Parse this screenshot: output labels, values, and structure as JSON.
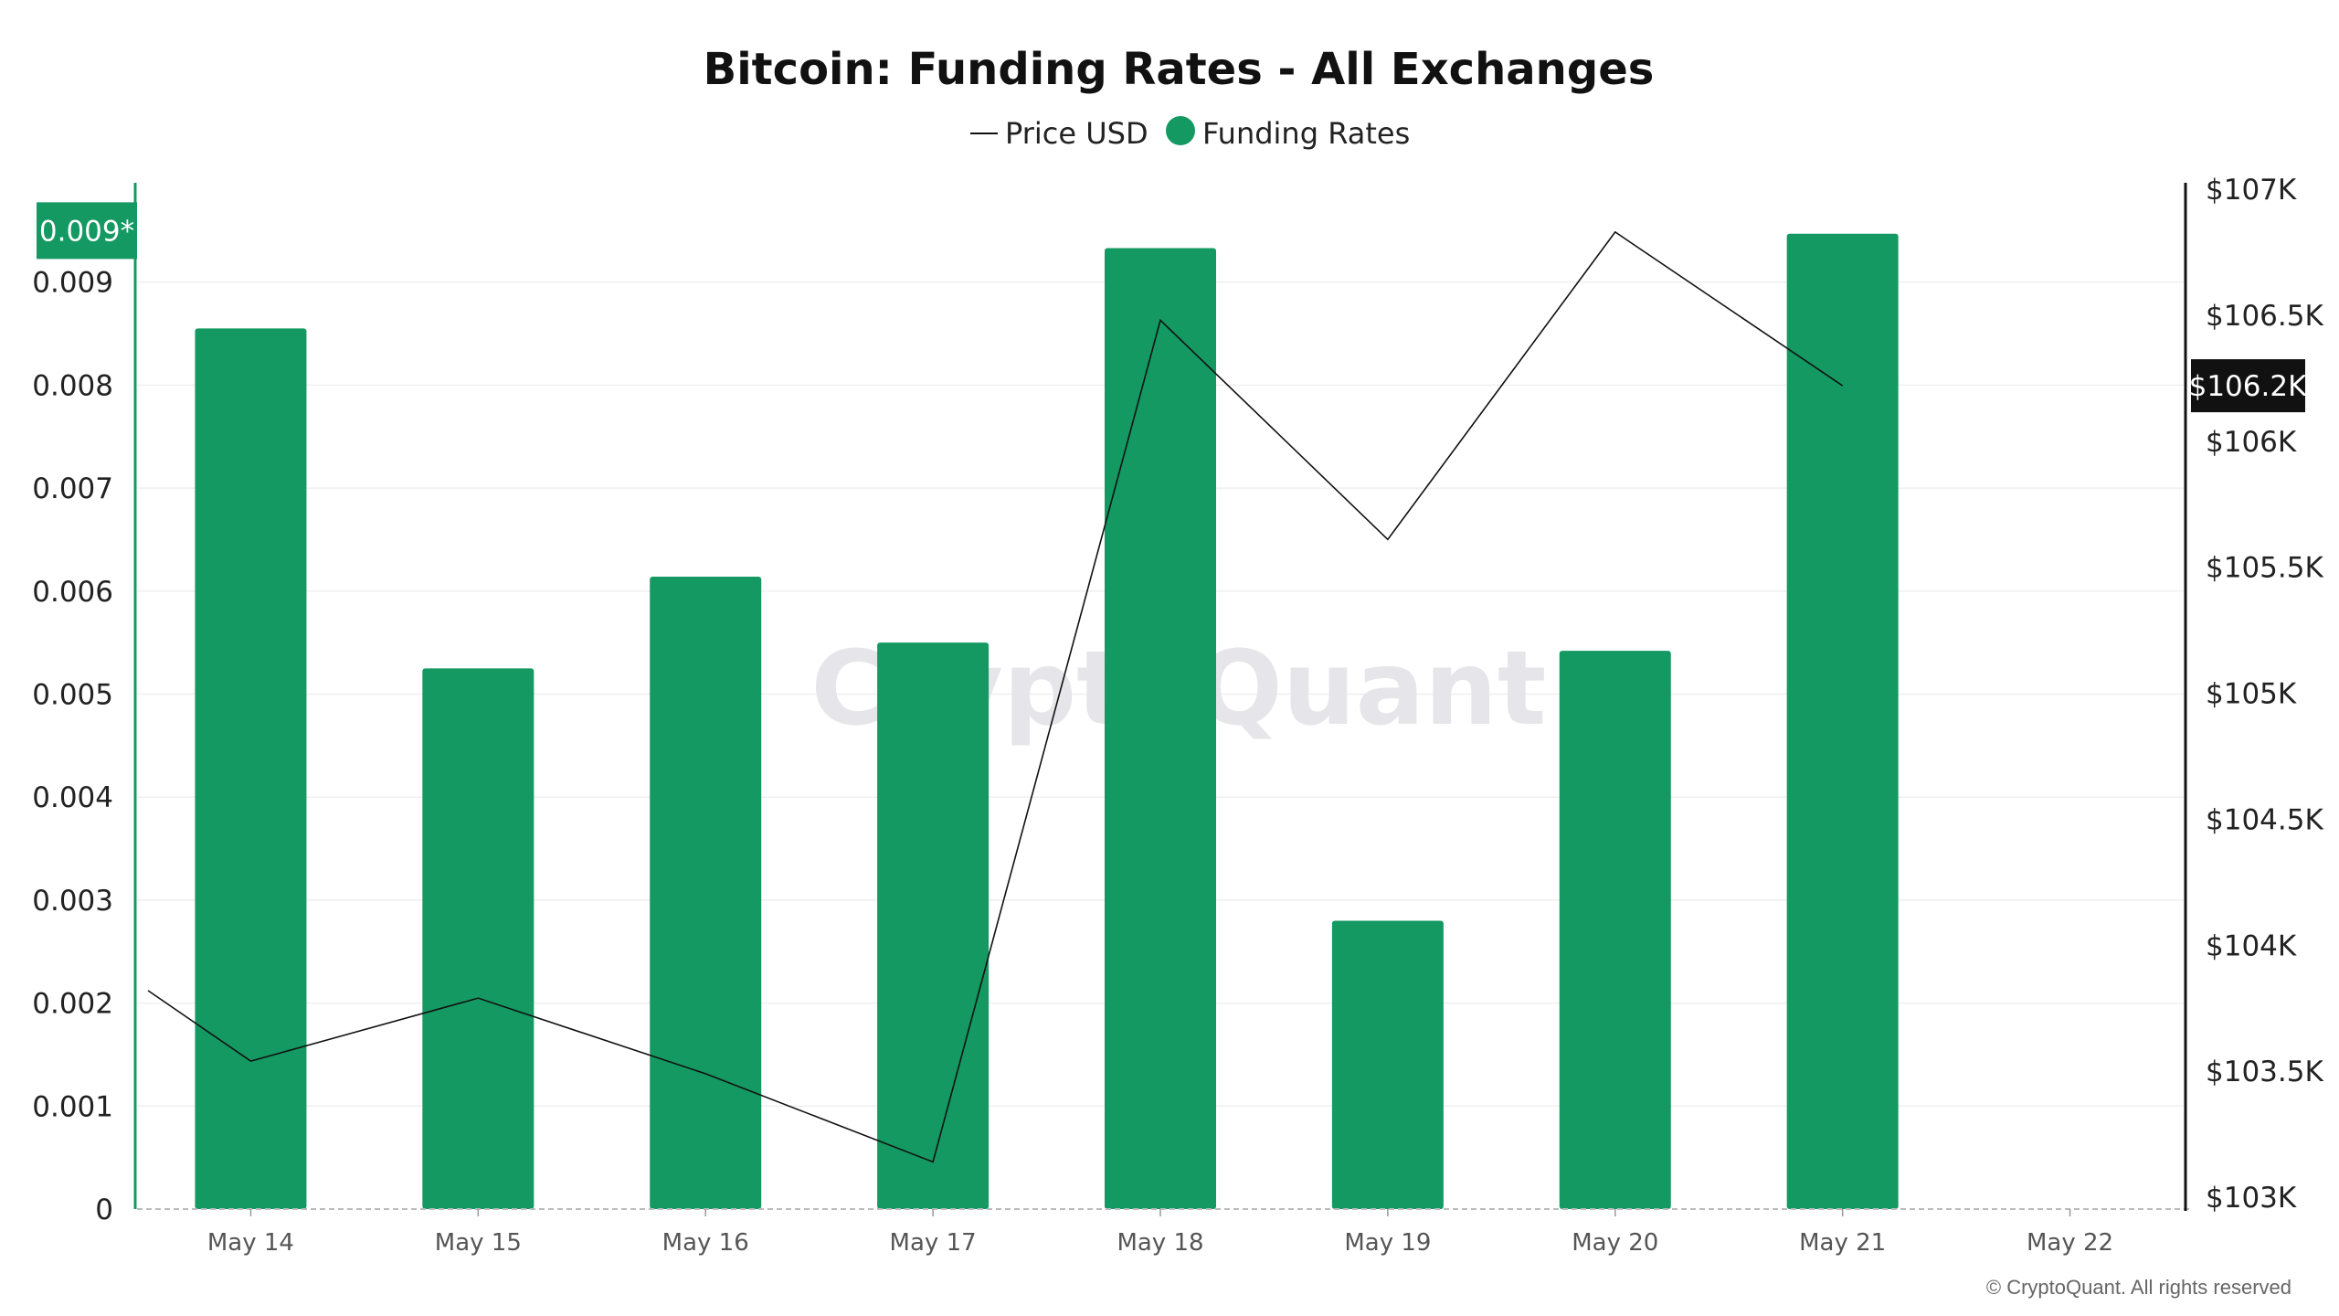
{
  "chart_data": {
    "type": "bar",
    "title": "Bitcoin: Funding Rates - All Exchanges",
    "legend": [
      {
        "name": "Price USD",
        "symbol": "line",
        "color": "#111111"
      },
      {
        "name": "Funding Rates",
        "symbol": "dot",
        "color": "#149962"
      }
    ],
    "legend_position": "top-center",
    "categories": [
      "May 14",
      "May 15",
      "May 16",
      "May 17",
      "May 18",
      "May 19",
      "May 20",
      "May 21",
      "May 22"
    ],
    "series": [
      {
        "name": "Funding Rates",
        "type": "bar",
        "axis": "left",
        "color": "#149962",
        "values": [
          0.00855,
          0.00525,
          0.00614,
          0.0055,
          0.00933,
          0.0028,
          0.00542,
          0.00947,
          null
        ]
      },
      {
        "name": "Price USD",
        "type": "line",
        "axis": "right",
        "color": "#111111",
        "x": [
          -0.5,
          0,
          1,
          2,
          3,
          4,
          5,
          6,
          7
        ],
        "values": [
          103820,
          103540,
          103790,
          103490,
          103140,
          106480,
          105610,
          106830,
          106220
        ]
      }
    ],
    "left_axis": {
      "ylim": [
        0,
        0.01
      ],
      "ticks": [
        {
          "value": 0,
          "label": "0"
        },
        {
          "value": 0.001,
          "label": "0.001"
        },
        {
          "value": 0.002,
          "label": "0.002"
        },
        {
          "value": 0.003,
          "label": "0.003"
        },
        {
          "value": 0.004,
          "label": "0.004"
        },
        {
          "value": 0.005,
          "label": "0.005"
        },
        {
          "value": 0.006,
          "label": "0.006"
        },
        {
          "value": 0.007,
          "label": "0.007"
        },
        {
          "value": 0.008,
          "label": "0.008"
        },
        {
          "value": 0.009,
          "label": "0.009"
        }
      ],
      "badge": {
        "value": 0.0095,
        "label": "0.009*",
        "color": "#149962"
      }
    },
    "right_axis": {
      "ylim": [
        103000,
        107000
      ],
      "ticks": [
        {
          "value": 103000,
          "label": "$103K"
        },
        {
          "value": 103500,
          "label": "$103.5K"
        },
        {
          "value": 104000,
          "label": "$104K"
        },
        {
          "value": 104500,
          "label": "$104.5K"
        },
        {
          "value": 105000,
          "label": "$105K"
        },
        {
          "value": 105500,
          "label": "$105.5K"
        },
        {
          "value": 106000,
          "label": "$106K"
        },
        {
          "value": 106500,
          "label": "$106.5K"
        },
        {
          "value": 107000,
          "label": "$107K"
        }
      ],
      "badge": {
        "value": 106220,
        "label": "$106.2K",
        "color": "#111111"
      }
    },
    "grid": true,
    "watermark": "CryptoQuant",
    "copyright": "© CryptoQuant. All rights reserved"
  }
}
